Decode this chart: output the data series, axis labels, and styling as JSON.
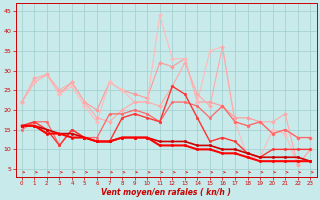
{
  "xlabel": "Vent moyen/en rafales ( kn/h )",
  "xlim": [
    -0.5,
    23.5
  ],
  "ylim": [
    3,
    47
  ],
  "yticks": [
    5,
    10,
    15,
    20,
    25,
    30,
    35,
    40,
    45
  ],
  "xticks": [
    0,
    1,
    2,
    3,
    4,
    5,
    6,
    7,
    8,
    9,
    10,
    11,
    12,
    13,
    14,
    15,
    16,
    17,
    18,
    19,
    20,
    21,
    22,
    23
  ],
  "bg_color": "#c8eaea",
  "grid_color": "#a0cccc",
  "series": [
    {
      "color": "#ff9999",
      "lw": 0.8,
      "marker": "D",
      "ms": 2.0,
      "y": [
        22,
        27,
        29,
        24,
        27,
        22,
        20,
        27,
        25,
        24,
        23,
        32,
        31,
        33,
        22,
        22,
        21,
        18,
        18,
        17,
        14,
        15,
        13,
        13
      ]
    },
    {
      "color": "#ffbbbb",
      "lw": 0.8,
      "marker": "D",
      "ms": 2.0,
      "y": [
        22,
        27,
        29,
        24,
        26,
        21,
        17,
        27,
        25,
        22,
        22,
        44,
        33,
        33,
        22,
        35,
        36,
        17,
        8,
        8,
        15,
        14,
        6,
        10
      ]
    },
    {
      "color": "#ffaaaa",
      "lw": 0.8,
      "marker": "D",
      "ms": 2.0,
      "y": [
        22,
        28,
        29,
        25,
        27,
        22,
        18,
        17,
        20,
        22,
        22,
        21,
        26,
        32,
        24,
        21,
        36,
        17,
        16,
        17,
        17,
        19,
        6,
        10
      ]
    },
    {
      "color": "#ff6666",
      "lw": 0.9,
      "marker": "o",
      "ms": 1.8,
      "y": [
        15,
        17,
        17,
        11,
        15,
        13,
        13,
        19,
        19,
        20,
        19,
        17,
        22,
        22,
        21,
        18,
        21,
        17,
        16,
        17,
        14,
        15,
        13,
        13
      ]
    },
    {
      "color": "#ff3333",
      "lw": 1.0,
      "marker": "o",
      "ms": 1.8,
      "y": [
        16,
        17,
        15,
        11,
        15,
        13,
        12,
        12,
        18,
        19,
        18,
        17,
        26,
        24,
        18,
        12,
        13,
        12,
        9,
        8,
        10,
        10,
        10,
        10
      ]
    },
    {
      "color": "#cc0000",
      "lw": 1.2,
      "marker": "o",
      "ms": 1.8,
      "y": [
        16,
        16,
        15,
        14,
        14,
        13,
        12,
        12,
        13,
        13,
        13,
        12,
        12,
        12,
        11,
        11,
        10,
        10,
        9,
        8,
        8,
        8,
        8,
        7
      ]
    },
    {
      "color": "#ff0000",
      "lw": 1.5,
      "marker": "o",
      "ms": 1.8,
      "y": [
        16,
        16,
        14,
        14,
        13,
        13,
        12,
        12,
        13,
        13,
        13,
        11,
        11,
        11,
        10,
        10,
        9,
        9,
        8,
        7,
        7,
        7,
        7,
        7
      ]
    }
  ],
  "arrow_color": "#dd3333"
}
